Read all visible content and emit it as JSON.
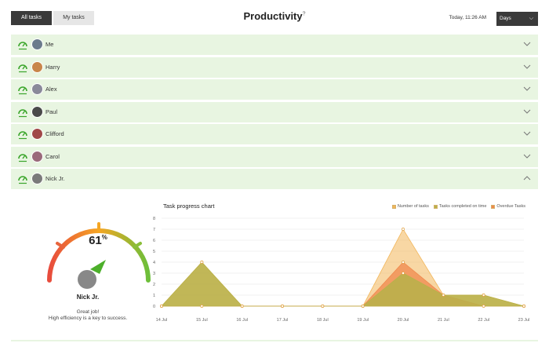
{
  "header": {
    "tab_all": "All tasks",
    "tab_my": "My tasks",
    "title": "Productivity",
    "help": "?",
    "datetime": "Today, 11:26 AM",
    "range": "Days"
  },
  "users": [
    {
      "name": "Me"
    },
    {
      "name": "Harry"
    },
    {
      "name": "Alex"
    },
    {
      "name": "Paul"
    },
    {
      "name": "Clifford"
    },
    {
      "name": "Carol"
    },
    {
      "name": "Nick Jr."
    }
  ],
  "detail": {
    "percent": "61",
    "percent_unit": "%",
    "gauge_value": 0.61,
    "name": "Nick Jr.",
    "msg1": "Great job!",
    "msg2": "High efficiency is a key to success."
  },
  "chart_data": {
    "type": "area",
    "title": "Task progress chart",
    "x": [
      "14 Jul",
      "15 Jul",
      "16 Jul",
      "17 Jul",
      "18 Jul",
      "19 Jul",
      "20 Jul",
      "21 Jul",
      "22 Jul",
      "23 Jul"
    ],
    "ylim": [
      0,
      8
    ],
    "yticks": [
      "0",
      "1",
      "2",
      "3",
      "4",
      "5",
      "6",
      "7",
      "8"
    ],
    "series": [
      {
        "name": "Number of tasks",
        "values": [
          0,
          4,
          0,
          0,
          0,
          0,
          7,
          1,
          1,
          0
        ],
        "color": "#f2b65a"
      },
      {
        "name": "Tasks completed on time",
        "values": [
          0,
          4,
          0,
          0,
          0,
          0,
          3,
          1,
          1,
          0
        ],
        "color": "#b7b24a"
      },
      {
        "name": "Overdue Tasks",
        "values": [
          0,
          0,
          0,
          0,
          0,
          0,
          4,
          1,
          0,
          0
        ],
        "color": "#f0884c"
      }
    ],
    "legend_position": "top-right",
    "grid": true
  }
}
